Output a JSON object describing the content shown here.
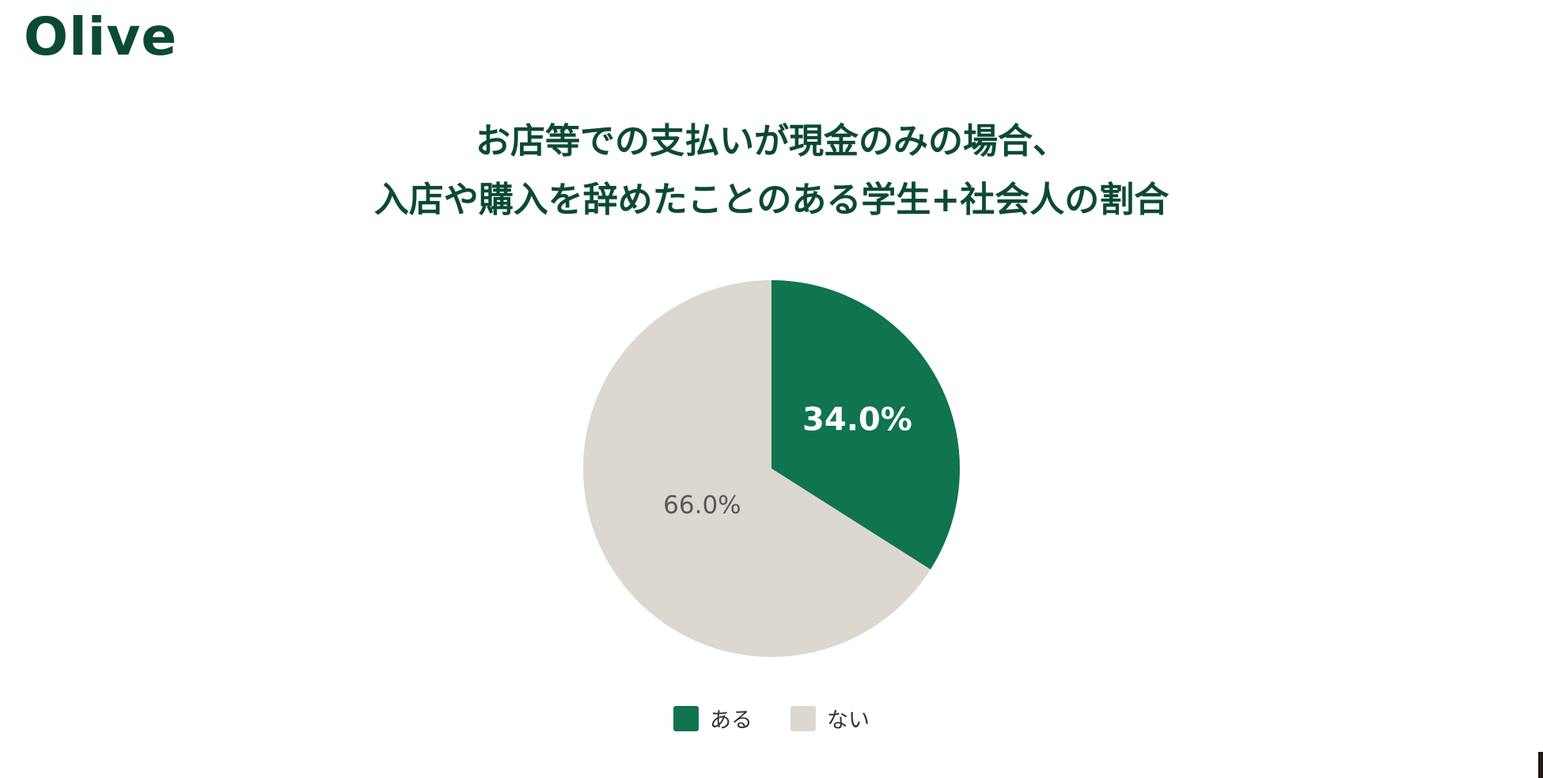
{
  "brand": {
    "logo_text": "Olive",
    "color": "#0b4a32"
  },
  "chart_data": {
    "type": "pie",
    "title_lines": [
      "お店等での支払いが現金のみの場合、",
      "入店や購入を辞めたことのある学生+社会人の割合"
    ],
    "slices": [
      {
        "name": "ある",
        "value": 34.0,
        "label": "34.0%",
        "color": "#10744e",
        "label_color": "#ffffff"
      },
      {
        "name": "ない",
        "value": 66.0,
        "label": "66.0%",
        "color": "#dcd8d0",
        "label_color": "#595757"
      }
    ],
    "start_angle": "12 o'clock",
    "direction": "clockwise",
    "legend_position": "bottom-center"
  }
}
